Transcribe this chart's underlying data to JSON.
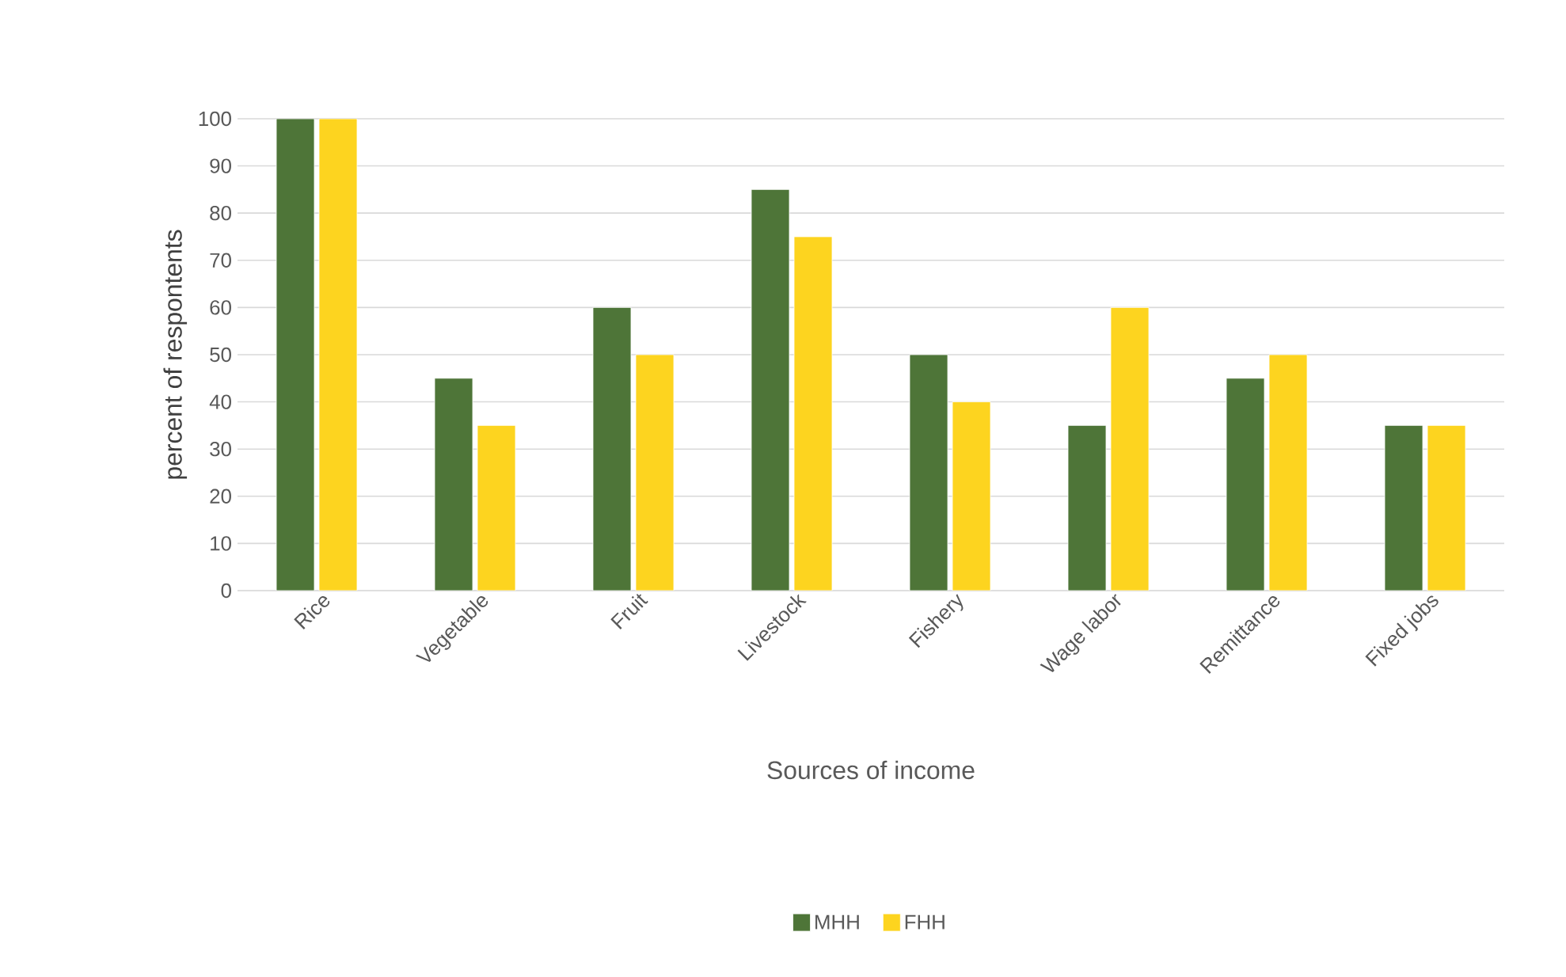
{
  "chart_data": {
    "type": "bar",
    "xlabel": "Sources of income",
    "ylabel": "percent of respontents",
    "categories": [
      "Rice",
      "Vegetable",
      "Fruit",
      "Livestock",
      "Fishery",
      "Wage labor",
      "Remittance",
      "Fixed jobs"
    ],
    "series": [
      {
        "name": "MHH",
        "color": "#4e7538",
        "values": [
          100,
          45,
          60,
          85,
          50,
          35,
          45,
          35
        ]
      },
      {
        "name": "FHH",
        "color": "#fdd41f",
        "values": [
          100,
          35,
          50,
          75,
          40,
          60,
          50,
          35
        ]
      }
    ],
    "ylim": [
      0,
      100
    ],
    "yticks": [
      0,
      10,
      20,
      30,
      40,
      50,
      60,
      70,
      80,
      90,
      100
    ],
    "grid": "y",
    "legend": "bottom"
  }
}
